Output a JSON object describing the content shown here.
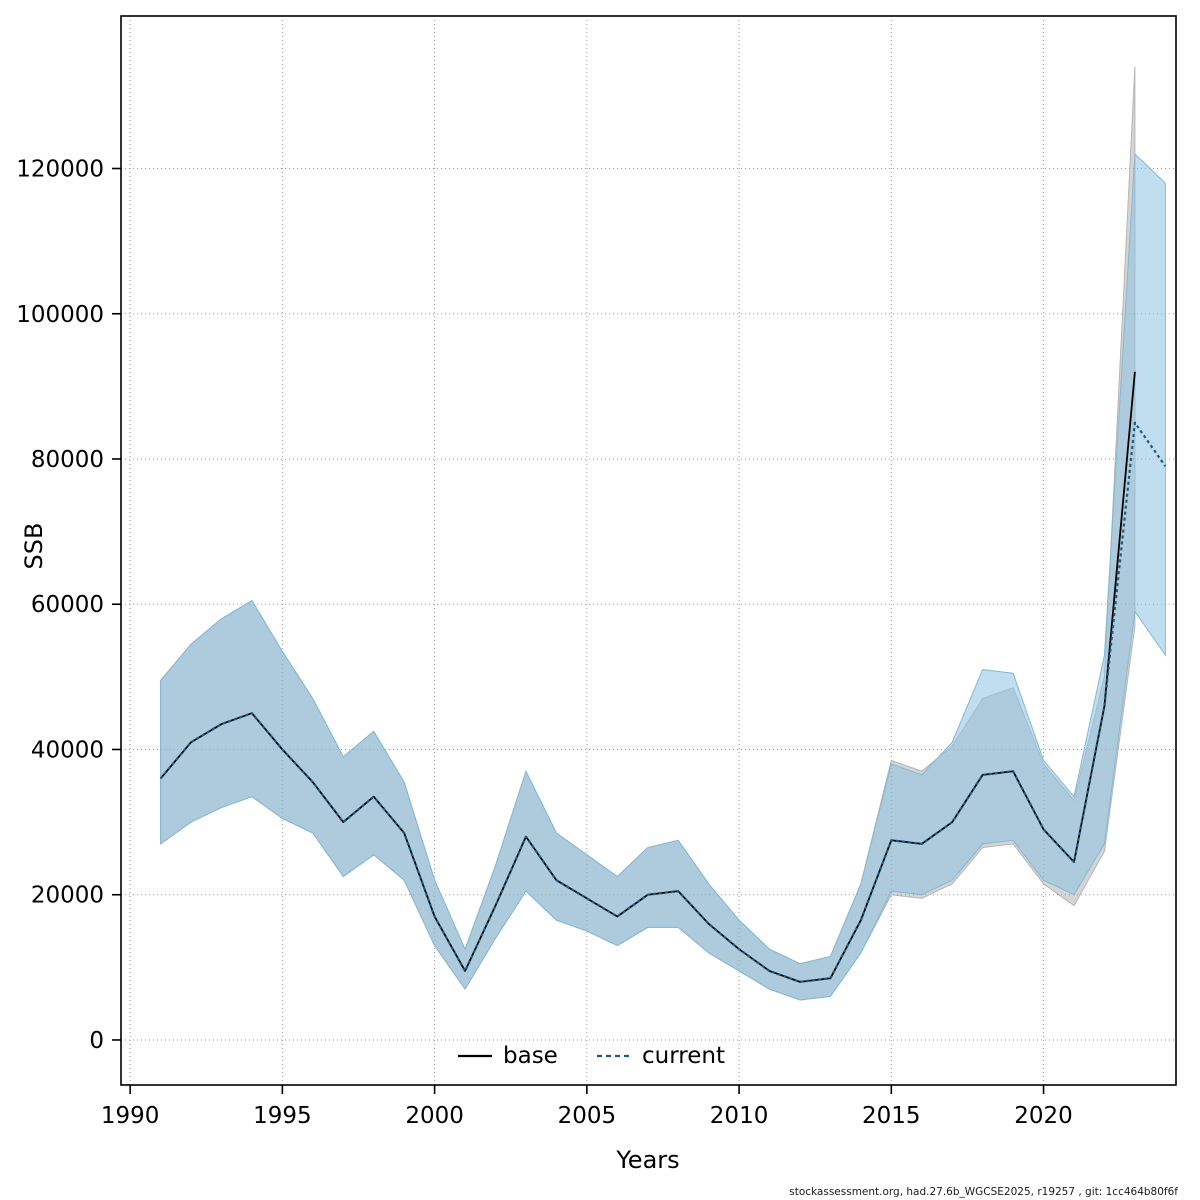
{
  "figure": {
    "footer": "stockassessment.org, had.27.6b_WGCSE2025, r19257 , git: 1cc464b80f6f"
  },
  "chart_data": {
    "type": "line",
    "title": "",
    "xlabel": "Years",
    "ylabel": "SSB",
    "xlim": [
      1989.7,
      2024.35
    ],
    "ylim": [
      -6200,
      141000
    ],
    "xticks": [
      1990,
      1995,
      2000,
      2005,
      2010,
      2015,
      2020
    ],
    "yticks": [
      0,
      20000,
      40000,
      60000,
      80000,
      100000,
      120000
    ],
    "grid": "dotted",
    "grid_color": "#999999",
    "legend_position": "bottom-center-inside",
    "series": [
      {
        "name": "base",
        "line_style": "solid",
        "line_color": "#000000",
        "band_fill": "rgba(150,150,150,0.40)",
        "band_edge": "#b5b5b5",
        "years": [
          1991,
          1992,
          1993,
          1994,
          1995,
          1996,
          1997,
          1998,
          1999,
          2000,
          2001,
          2002,
          2003,
          2004,
          2005,
          2006,
          2007,
          2008,
          2009,
          2010,
          2011,
          2012,
          2013,
          2014,
          2015,
          2016,
          2017,
          2018,
          2019,
          2020,
          2021,
          2022,
          2023
        ],
        "values": [
          36000,
          41000,
          43500,
          45000,
          40000,
          35500,
          30000,
          33500,
          28500,
          17000,
          9500,
          18500,
          28000,
          22000,
          19500,
          17000,
          20000,
          20500,
          16000,
          12500,
          9500,
          8000,
          8500,
          16500,
          27500,
          27000,
          30000,
          36500,
          37000,
          29000,
          24500,
          46000,
          92000
        ],
        "lower": [
          27000,
          30000,
          32000,
          33500,
          30500,
          28500,
          22500,
          25500,
          22000,
          13000,
          7000,
          14000,
          20500,
          16500,
          15000,
          13000,
          15500,
          15500,
          12000,
          9500,
          7000,
          5500,
          6000,
          12000,
          20000,
          19500,
          21500,
          26500,
          27000,
          21500,
          18500,
          26000,
          57000
        ],
        "upper": [
          49500,
          54500,
          58000,
          60500,
          53500,
          47000,
          39000,
          42500,
          35500,
          22000,
          12500,
          24000,
          37000,
          28500,
          25500,
          22500,
          26500,
          27500,
          21500,
          16500,
          12500,
          10500,
          11500,
          21500,
          38500,
          37000,
          40500,
          47000,
          48500,
          38000,
          33000,
          50000,
          134000
        ]
      },
      {
        "name": "current",
        "line_style": "dashed",
        "line_color": "#1d5a7e",
        "band_fill": "rgba(140,195,225,0.55)",
        "band_edge": "#85b8d3",
        "years": [
          1991,
          1992,
          1993,
          1994,
          1995,
          1996,
          1997,
          1998,
          1999,
          2000,
          2001,
          2002,
          2003,
          2004,
          2005,
          2006,
          2007,
          2008,
          2009,
          2010,
          2011,
          2012,
          2013,
          2014,
          2015,
          2016,
          2017,
          2018,
          2019,
          2020,
          2021,
          2022,
          2023,
          2024
        ],
        "values": [
          36000,
          41000,
          43500,
          45000,
          40000,
          35500,
          30000,
          33500,
          28500,
          17000,
          9500,
          18500,
          28000,
          22000,
          19500,
          17000,
          20000,
          20500,
          16000,
          12500,
          9500,
          8000,
          8500,
          16500,
          27500,
          27000,
          30000,
          36500,
          37000,
          29000,
          24500,
          46000,
          85000,
          79000
        ],
        "lower": [
          27000,
          30000,
          32000,
          33500,
          30500,
          28500,
          22500,
          25500,
          22000,
          13000,
          7000,
          14000,
          20500,
          16500,
          15000,
          13000,
          15500,
          15500,
          12000,
          9500,
          7000,
          5500,
          6000,
          12000,
          20500,
          20000,
          22000,
          27000,
          27500,
          22000,
          20000,
          27000,
          59000,
          53000
        ],
        "upper": [
          49500,
          54500,
          58000,
          60500,
          53500,
          47000,
          39000,
          42500,
          35500,
          22000,
          12500,
          24000,
          37000,
          28500,
          25500,
          22500,
          26500,
          27500,
          21500,
          16500,
          12500,
          10500,
          11500,
          21500,
          38000,
          36500,
          41000,
          51000,
          50500,
          38500,
          33500,
          53000,
          122000,
          118000
        ]
      }
    ]
  }
}
